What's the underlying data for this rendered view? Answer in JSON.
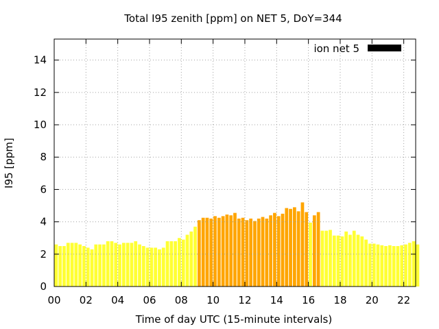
{
  "chart_data": {
    "type": "bar",
    "title": "Total I95 zenith [ppm] on NET 5, DoY=344",
    "xlabel": "Time of day UTC (15-minute intervals)",
    "ylabel": "I95 [ppm]",
    "xlim": [
      0,
      22.75
    ],
    "ylim": [
      0,
      15.3
    ],
    "x_ticks": [
      0,
      2,
      4,
      6,
      8,
      10,
      12,
      14,
      16,
      18,
      20,
      22
    ],
    "x_tick_labels": [
      "00",
      "02",
      "04",
      "06",
      "08",
      "10",
      "12",
      "14",
      "16",
      "18",
      "20",
      "22"
    ],
    "y_ticks": [
      0,
      2,
      4,
      6,
      8,
      10,
      12,
      14
    ],
    "y_tick_labels": [
      "0",
      "2",
      "4",
      "6",
      "8",
      "10",
      "12",
      "14"
    ],
    "grid": true,
    "legend": {
      "label": "ion net 5",
      "color": "#000000",
      "placement": "top-right"
    },
    "colors": {
      "low": "#ffff33",
      "high": "#ffa500"
    },
    "threshold": 4,
    "interval_hours": 0.25,
    "values": [
      2.6,
      2.5,
      2.5,
      2.7,
      2.7,
      2.7,
      2.6,
      2.5,
      2.4,
      2.3,
      2.6,
      2.6,
      2.6,
      2.8,
      2.8,
      2.7,
      2.6,
      2.7,
      2.7,
      2.7,
      2.8,
      2.6,
      2.5,
      2.4,
      2.4,
      2.4,
      2.3,
      2.4,
      2.8,
      2.8,
      2.8,
      3.0,
      2.9,
      3.2,
      3.4,
      3.7,
      4.1,
      4.25,
      4.25,
      4.2,
      4.35,
      4.25,
      4.35,
      4.45,
      4.4,
      4.55,
      4.2,
      4.25,
      4.1,
      4.2,
      4.05,
      4.2,
      4.3,
      4.2,
      4.4,
      4.55,
      4.35,
      4.5,
      4.85,
      4.8,
      4.9,
      4.65,
      5.2,
      4.6,
      3.95,
      4.4,
      4.6,
      3.45,
      3.45,
      3.5,
      3.15,
      3.15,
      3.1,
      3.4,
      3.2,
      3.45,
      3.2,
      3.1,
      2.9,
      2.65,
      2.65,
      2.6,
      2.55,
      2.5,
      2.55,
      2.5,
      2.5,
      2.55,
      2.6,
      2.7,
      2.8,
      2.6
    ]
  }
}
